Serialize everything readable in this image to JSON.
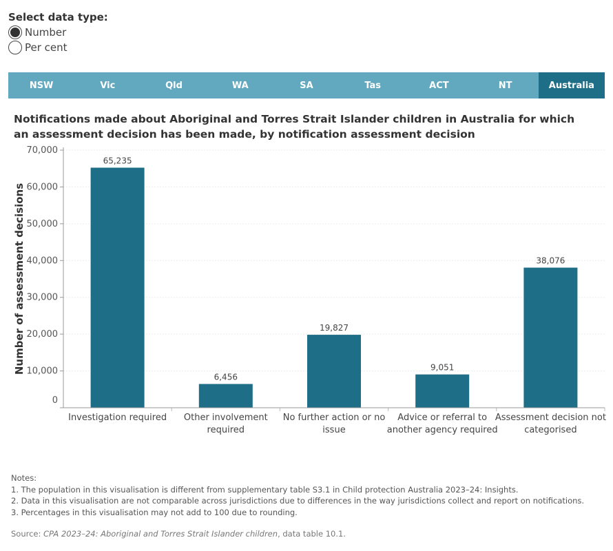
{
  "controls": {
    "select_label": "Select data type:",
    "options": [
      {
        "label": "Number",
        "selected": true
      },
      {
        "label": "Per cent",
        "selected": false
      }
    ]
  },
  "tabs": [
    {
      "label": "NSW",
      "active": false
    },
    {
      "label": "Vic",
      "active": false
    },
    {
      "label": "Qld",
      "active": false
    },
    {
      "label": "WA",
      "active": false
    },
    {
      "label": "SA",
      "active": false
    },
    {
      "label": "Tas",
      "active": false
    },
    {
      "label": "ACT",
      "active": false
    },
    {
      "label": "NT",
      "active": false
    },
    {
      "label": "Australia",
      "active": true
    }
  ],
  "colors": {
    "bar": "#1f6e87",
    "tab": "#62a9c0",
    "tab_active": "#1f6e87"
  },
  "chart_data": {
    "type": "bar",
    "title": "Notifications made about Aboriginal and Torres Strait Islander children in Australia for which an assessment decision has been made, by notification assessment decision",
    "xlabel": "",
    "ylabel": "Number of assessment decisions",
    "ylim": [
      0,
      70000
    ],
    "yticks": [
      0,
      10000,
      20000,
      30000,
      40000,
      50000,
      60000,
      70000
    ],
    "ytick_labels": [
      "0",
      "10,000",
      "20,000",
      "30,000",
      "40,000",
      "50,000",
      "60,000",
      "70,000"
    ],
    "grid": true,
    "categories": [
      [
        "Investigation required"
      ],
      [
        "Other involvement",
        "required"
      ],
      [
        "No further action or no",
        "issue"
      ],
      [
        "Advice or referral to",
        "another agency required"
      ],
      [
        "Assessment decision not",
        "categorised"
      ]
    ],
    "values": [
      65235,
      6456,
      19827,
      9051,
      38076
    ],
    "value_labels": [
      "65,235",
      "6,456",
      "19,827",
      "9,051",
      "38,076"
    ]
  },
  "notes": {
    "heading": "Notes:",
    "items": [
      "1. The population in this visualisation is different from supplementary table S3.1 in Child protection Australia 2023–24: Insights.",
      "2. Data in this visualisation are not comparable across jurisdictions due to differences in the way jurisdictions collect and report on notifications.",
      "3. Percentages in this visualisation may not add to 100 due to rounding."
    ]
  },
  "source": {
    "prefix": "Source: ",
    "title": "CPA 2023–24: Aboriginal and Torres Strait Islander children",
    "suffix": ", data table 10.1."
  }
}
